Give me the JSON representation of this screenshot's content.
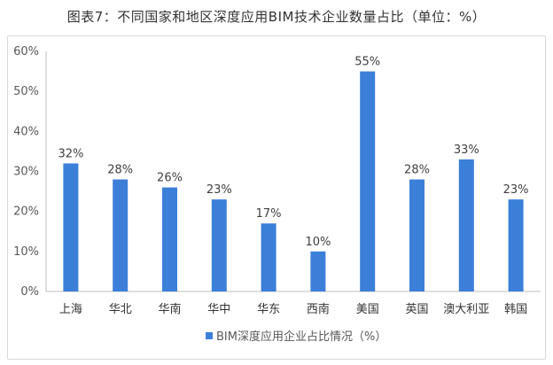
{
  "title": "图表7：不同国家和地区深度应用BIM技术企业数量占比（单位：%）",
  "chart_data": {
    "type": "bar",
    "title": "图表7：不同国家和地区深度应用BIM技术企业数量占比（单位：%）",
    "categories": [
      "上海",
      "华北",
      "华南",
      "华中",
      "华东",
      "西南",
      "美国",
      "英国",
      "澳大利亚",
      "韩国"
    ],
    "series": [
      {
        "name": "BIM深度应用企业占比情况（%）",
        "values": [
          32,
          28,
          26,
          23,
          17,
          10,
          55,
          28,
          33,
          23
        ],
        "labels": [
          "32%",
          "28%",
          "26%",
          "23%",
          "17%",
          "10%",
          "55%",
          "28%",
          "33%",
          "23%"
        ],
        "color": "#3b7fd8"
      }
    ],
    "ylim": [
      0,
      60
    ],
    "yticks": [
      0,
      10,
      20,
      30,
      40,
      50,
      60
    ],
    "ytick_labels": [
      "0%",
      "10%",
      "20%",
      "30%",
      "40%",
      "50%",
      "60%"
    ],
    "grid": false,
    "legend_position": "bottom"
  }
}
